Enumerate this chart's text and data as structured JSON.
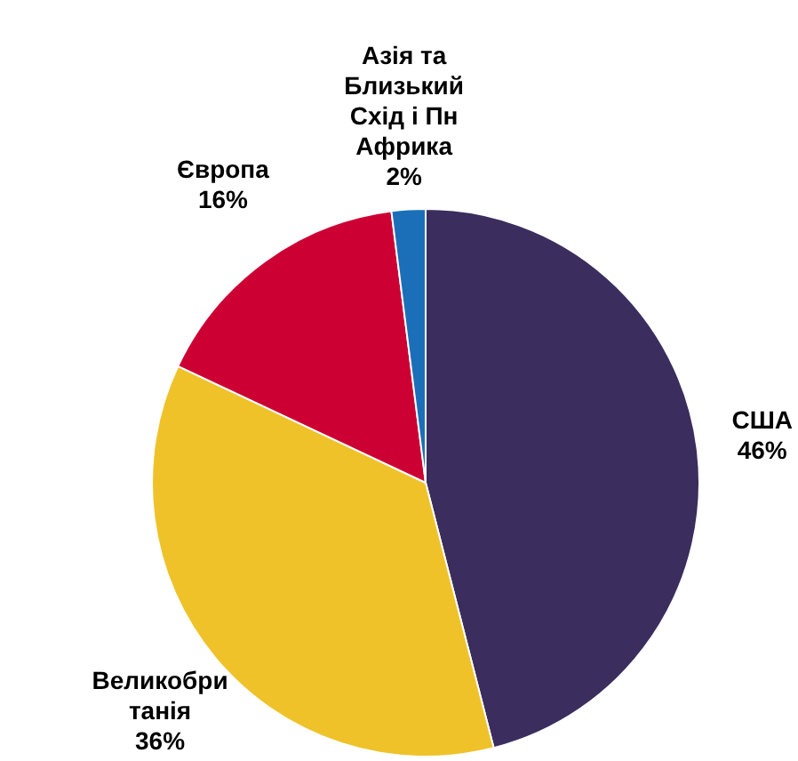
{
  "chart_data": {
    "type": "pie",
    "categories": [
      "США",
      "Великобританія",
      "Європа",
      "Азія та Близький Схід і Пн Африка"
    ],
    "values": [
      46,
      36,
      16,
      2
    ],
    "colors": [
      "#3b2d5e",
      "#efc229",
      "#cc0033",
      "#1a6fb8"
    ],
    "value_labels": [
      "46%",
      "36%",
      "16%",
      "2%"
    ],
    "legend": false
  }
}
